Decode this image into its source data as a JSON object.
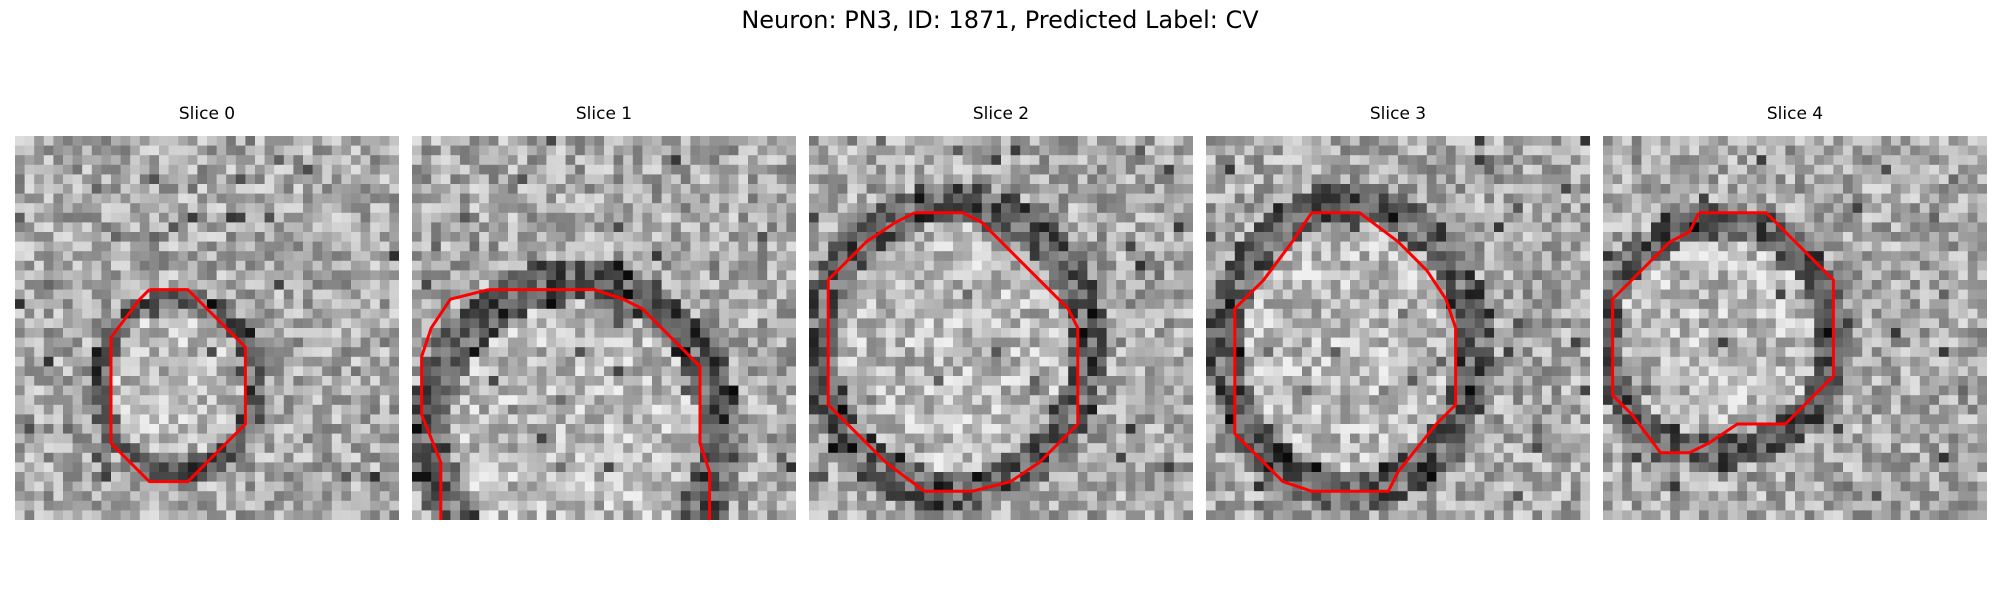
{
  "figure": {
    "title": "Neuron: PN3, ID: 1871, Predicted Label: CV",
    "contour_color": "#ff0000",
    "image_colormap": "gray"
  },
  "panels": [
    {
      "label": "Slice 0",
      "contour": [
        [
          14,
          16
        ],
        [
          18,
          16
        ],
        [
          24,
          22
        ],
        [
          24,
          30
        ],
        [
          18,
          36
        ],
        [
          14,
          36
        ],
        [
          10,
          32
        ],
        [
          10,
          21
        ],
        [
          13,
          17
        ]
      ]
    },
    {
      "label": "Slice 1",
      "contour": [
        [
          8,
          16
        ],
        [
          19,
          16
        ],
        [
          22,
          17
        ],
        [
          24,
          18
        ],
        [
          30,
          24
        ],
        [
          30,
          32
        ],
        [
          31,
          35
        ],
        [
          31,
          40
        ],
        [
          26,
          45
        ],
        [
          24,
          47
        ],
        [
          21,
          48
        ],
        [
          18,
          48
        ],
        [
          13,
          50
        ],
        [
          10,
          50
        ],
        [
          6,
          46
        ],
        [
          3,
          43
        ],
        [
          3,
          34
        ],
        [
          1,
          29
        ],
        [
          1,
          23
        ],
        [
          2,
          20
        ],
        [
          4,
          17
        ]
      ]
    },
    {
      "label": "Slice 2",
      "contour": [
        [
          11,
          8
        ],
        [
          16,
          8
        ],
        [
          18,
          9
        ],
        [
          22,
          13
        ],
        [
          27,
          18
        ],
        [
          28,
          20
        ],
        [
          28,
          30
        ],
        [
          24,
          34
        ],
        [
          21,
          36
        ],
        [
          17,
          37
        ],
        [
          12,
          37
        ],
        [
          8,
          34
        ],
        [
          5,
          31
        ],
        [
          2,
          28
        ],
        [
          2,
          15
        ],
        [
          6,
          11
        ],
        [
          9,
          9
        ]
      ]
    },
    {
      "label": "Slice 3",
      "contour": [
        [
          11,
          8
        ],
        [
          16,
          8
        ],
        [
          20,
          11
        ],
        [
          23,
          14
        ],
        [
          25,
          17
        ],
        [
          26,
          20
        ],
        [
          26,
          28
        ],
        [
          24,
          30
        ],
        [
          20,
          35
        ],
        [
          19,
          37
        ],
        [
          11,
          37
        ],
        [
          8,
          36
        ],
        [
          5,
          33
        ],
        [
          3,
          31
        ],
        [
          3,
          18
        ],
        [
          6,
          15
        ],
        [
          9,
          11
        ]
      ]
    },
    {
      "label": "Slice 4",
      "contour": [
        [
          10,
          8
        ],
        [
          17,
          8
        ],
        [
          22,
          13
        ],
        [
          24,
          15
        ],
        [
          24,
          25
        ],
        [
          22,
          27
        ],
        [
          19,
          30
        ],
        [
          14,
          30
        ],
        [
          11,
          32
        ],
        [
          9,
          33
        ],
        [
          6,
          33
        ],
        [
          3,
          29
        ],
        [
          1,
          27
        ],
        [
          1,
          17
        ],
        [
          3,
          15
        ],
        [
          7,
          11
        ],
        [
          9,
          10
        ]
      ]
    }
  ]
}
